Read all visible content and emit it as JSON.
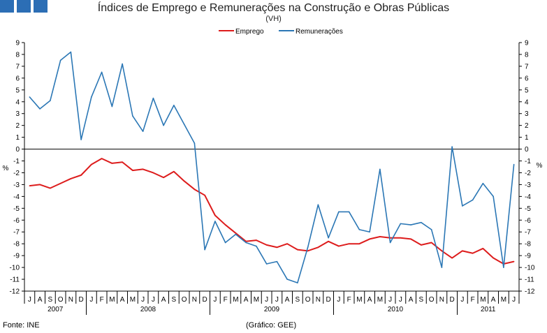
{
  "header": {
    "title": "Índices de Emprego e Remunerações na Construção e Obras Públicas",
    "subtitle": "(VH)"
  },
  "footer": {
    "source": "Fonte: INE",
    "credit": "(Gráfico: GEE)"
  },
  "colors": {
    "brand_blocks": "#2c6eb5",
    "emprego": "#dd1c1c",
    "remuneracoes": "#2b77b5"
  },
  "chart_data": {
    "type": "line",
    "title": "Índices de Emprego e Remunerações na Construção e Obras Públicas",
    "subtitle": "(VH)",
    "ylabel_left": "%",
    "ylabel_right": "%",
    "ylim": [
      -12,
      9
    ],
    "yticks": [
      9,
      8,
      7,
      6,
      5,
      4,
      3,
      2,
      1,
      0,
      -1,
      -2,
      -3,
      -4,
      -5,
      -6,
      -7,
      -8,
      -9,
      -10,
      -11,
      -12
    ],
    "legend": [
      "Emprego",
      "Remunerações"
    ],
    "legend_position": "top-center",
    "month_labels": [
      "J",
      "A",
      "S",
      "O",
      "N",
      "D",
      "J",
      "F",
      "M",
      "A",
      "M",
      "J",
      "J",
      "A",
      "S",
      "O",
      "N",
      "D",
      "J",
      "F",
      "M",
      "A",
      "M",
      "J",
      "J",
      "A",
      "S",
      "O",
      "N",
      "D",
      "J",
      "F",
      "M",
      "A",
      "M",
      "J",
      "J",
      "A",
      "S",
      "O",
      "N",
      "D",
      "J",
      "F",
      "M",
      "A",
      "M",
      "J"
    ],
    "years": [
      {
        "label": "2007",
        "start": 0,
        "end": 5
      },
      {
        "label": "2008",
        "start": 6,
        "end": 17
      },
      {
        "label": "2009",
        "start": 18,
        "end": 29
      },
      {
        "label": "2010",
        "start": 30,
        "end": 41
      },
      {
        "label": "2011",
        "start": 42,
        "end": 47
      }
    ],
    "series": [
      {
        "name": "Emprego",
        "values": [
          -3.1,
          -3.0,
          -3.3,
          -2.9,
          -2.5,
          -2.2,
          -1.3,
          -0.8,
          -1.2,
          -1.1,
          -1.8,
          -1.7,
          -2.0,
          -2.4,
          -1.9,
          -2.7,
          -3.4,
          -3.9,
          -5.6,
          -6.4,
          -7.1,
          -7.8,
          -7.7,
          -8.1,
          -8.3,
          -8.0,
          -8.5,
          -8.6,
          -8.3,
          -7.8,
          -8.2,
          -8.0,
          -8.0,
          -7.6,
          -7.4,
          -7.5,
          -7.5,
          -7.6,
          -8.1,
          -7.9,
          -8.6,
          -9.2,
          -8.6,
          -8.8,
          -8.4,
          -9.2,
          -9.7,
          -9.5
        ]
      },
      {
        "name": "Remunerações",
        "values": [
          4.4,
          3.4,
          4.1,
          7.5,
          8.2,
          0.8,
          4.4,
          6.5,
          3.6,
          7.2,
          2.8,
          1.5,
          4.3,
          2.0,
          3.7,
          2.1,
          0.5,
          -8.5,
          -6.1,
          -7.9,
          -7.2,
          -7.9,
          -8.2,
          -9.7,
          -9.5,
          -11.0,
          -11.3,
          -8.3,
          -4.7,
          -7.5,
          -5.3,
          -5.3,
          -6.8,
          -7.0,
          -1.7,
          -7.9,
          -6.3,
          -6.4,
          -6.2,
          -6.8,
          -10.0,
          0.2,
          -4.8,
          -4.3,
          -2.9,
          -4.0,
          -10.0,
          -1.3
        ]
      }
    ]
  }
}
